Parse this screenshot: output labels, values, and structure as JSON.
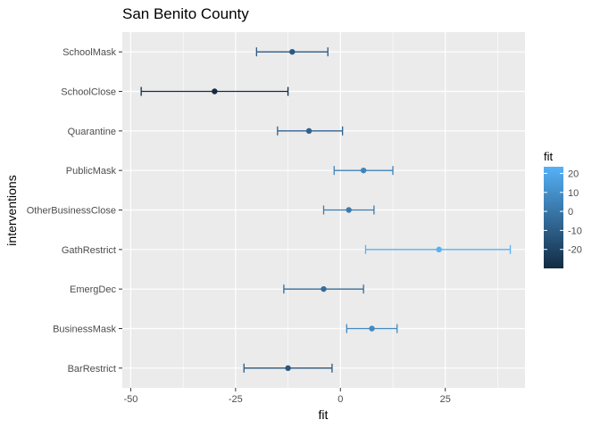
{
  "chart_data": {
    "type": "errorbar",
    "title": "San Benito County",
    "xlabel": "fit",
    "ylabel": "interventions",
    "xlim": [
      -52,
      44
    ],
    "x_ticks": [
      -50,
      -25,
      0,
      25
    ],
    "x_tick_labels": [
      "-50",
      "-25",
      "0",
      "25"
    ],
    "grid": true,
    "categories": [
      "SchoolMask",
      "SchoolClose",
      "Quarantine",
      "PublicMask",
      "OtherBusinessClose",
      "GathRestrict",
      "EmergDec",
      "BusinessMask",
      "BarRestrict"
    ],
    "points": [
      {
        "intervention": "SchoolMask",
        "fit": -11.5,
        "lower": -20,
        "upper": -3
      },
      {
        "intervention": "SchoolClose",
        "fit": -30,
        "lower": -47.5,
        "upper": -12.5
      },
      {
        "intervention": "Quarantine",
        "fit": -7.5,
        "lower": -15,
        "upper": 0.5
      },
      {
        "intervention": "PublicMask",
        "fit": 5.5,
        "lower": -1.5,
        "upper": 12.5
      },
      {
        "intervention": "OtherBusinessClose",
        "fit": 2,
        "lower": -4,
        "upper": 8
      },
      {
        "intervention": "GathRestrict",
        "fit": 23.5,
        "lower": 6,
        "upper": 40.5
      },
      {
        "intervention": "EmergDec",
        "fit": -4,
        "lower": -13.5,
        "upper": 5.5
      },
      {
        "intervention": "BusinessMask",
        "fit": 7.5,
        "lower": 1.5,
        "upper": 13.5
      },
      {
        "intervention": "BarRestrict",
        "fit": -12.5,
        "lower": -23,
        "upper": -2
      }
    ],
    "legend": {
      "title": "fit",
      "position": "right",
      "ticks": [
        20,
        10,
        0,
        -10,
        -20
      ],
      "tick_labels": [
        "20",
        "10",
        "0",
        "-10",
        "-20"
      ],
      "range": [
        -30,
        23.5
      ],
      "color_low": "#132B43",
      "color_high": "#56B1F7"
    },
    "panel_color": "#EBEBEB",
    "grid_color": "#FFFFFF"
  }
}
